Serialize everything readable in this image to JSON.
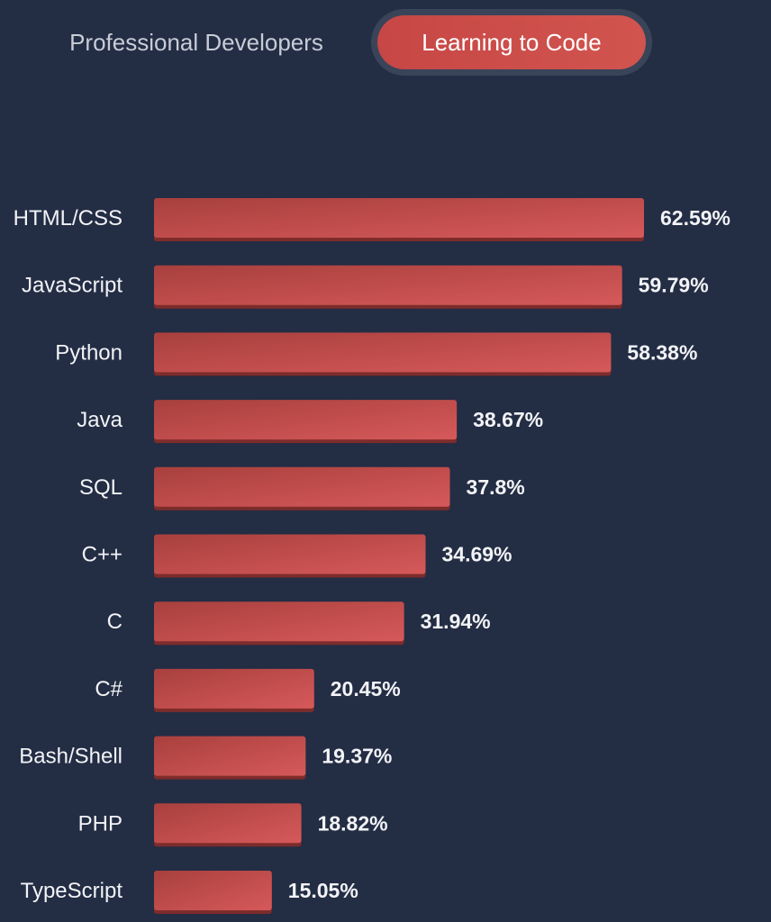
{
  "toggle": {
    "options": [
      "Professional Developers",
      "Learning to Code"
    ],
    "selected": "Learning to Code"
  },
  "colors": {
    "background": "#232d44",
    "bar_start": "#a8403d",
    "bar_end": "#d6595a",
    "bar_shadow": "#7d2c2b",
    "text": "#f2f3f6"
  },
  "chart_data": {
    "type": "bar",
    "orientation": "horizontal",
    "categories": [
      "HTML/CSS",
      "JavaScript",
      "Python",
      "Java",
      "SQL",
      "C++",
      "C",
      "C#",
      "Bash/Shell",
      "PHP",
      "TypeScript"
    ],
    "values": [
      62.59,
      59.79,
      58.38,
      38.67,
      37.8,
      34.69,
      31.94,
      20.45,
      19.37,
      18.82,
      15.05
    ],
    "value_labels": [
      "62.59%",
      "59.79%",
      "58.38%",
      "38.67%",
      "37.8%",
      "34.69%",
      "31.94%",
      "20.45%",
      "19.37%",
      "18.82%",
      "15.05%"
    ],
    "unit": "%",
    "title": "",
    "xlabel": "",
    "ylabel": "",
    "xlim": [
      0,
      62.59
    ],
    "grid": false,
    "legend": "none"
  }
}
